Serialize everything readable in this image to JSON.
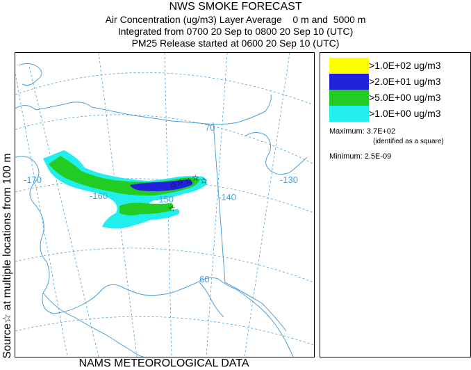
{
  "titles": {
    "line1": "NWS SMOKE FORECAST",
    "line2": "Air Concentration (ug/m3) Layer Average    0 m and  5000 m",
    "line3": "Integrated from 0700 20 Sep to 0800 20 Sep 10 (UTC)",
    "line4": "PM25 Release started at 0600 20 Sep 10 (UTC)"
  },
  "side_label": "Source☆  at multiple locations  from  100 m",
  "footer": "NAMS METEOROLOGICAL DATA",
  "legend": {
    "items": [
      {
        "label": ">1.0E+02 ug/m3",
        "color": "#ffff00"
      },
      {
        "label": ">2.0E+01 ug/m3",
        "color": "#2222dd"
      },
      {
        "label": ">5.0E+00 ug/m3",
        "color": "#22cc22"
      },
      {
        "label": ">1.0E+00 ug/m3",
        "color": "#22eeee"
      }
    ],
    "maximum_label": "Maximum: 3.7E+02",
    "maximum_note": "(identified as a square)",
    "minimum_label": "Minimum: 2.5E-09"
  },
  "map": {
    "graticule_labels": {
      "lat70": "70",
      "lat60": "60",
      "lon170": "-170",
      "lon160": "-160",
      "lon150": "-150",
      "lon140": "-140",
      "lon130": "-130"
    },
    "colors": {
      "coast": "#4a9fd8",
      "graticule": "#4a9fd8",
      "border": "#4a9fd8",
      "plume_outer": "#22eeee",
      "plume_mid": "#22cc22",
      "plume_inner": "#2222dd"
    }
  }
}
